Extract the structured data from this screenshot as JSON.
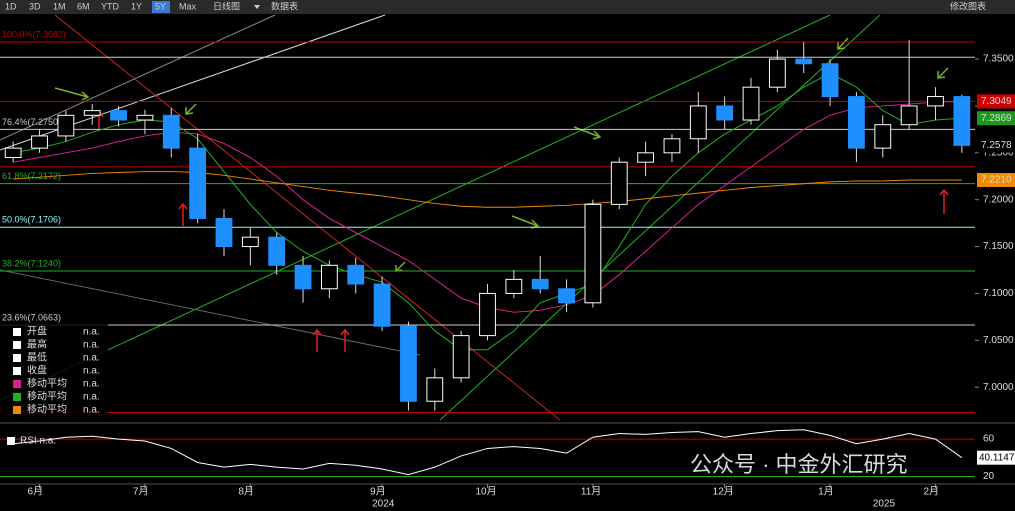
{
  "toolbar": {
    "ranges": [
      "1D",
      "3D",
      "1M",
      "6M",
      "YTD",
      "1Y",
      "5Y",
      "Max"
    ],
    "selected": "5Y",
    "chart_style": "日线图",
    "data_table": "数据表",
    "edit": "修改图表"
  },
  "chart_data": {
    "type": "candlestick",
    "categories": [
      null,
      "6月",
      null,
      null,
      null,
      "7月",
      null,
      null,
      null,
      "8月",
      null,
      null,
      null,
      null,
      "9月",
      null,
      null,
      null,
      "10月",
      null,
      null,
      null,
      "11月",
      null,
      null,
      null,
      null,
      "12月",
      null,
      null,
      null,
      "1月",
      null,
      null,
      null,
      "2月",
      null
    ],
    "years": [
      null,
      null,
      null,
      null,
      null,
      null,
      null,
      null,
      null,
      null,
      null,
      null,
      null,
      null,
      "2024",
      null,
      null,
      null,
      null,
      null,
      null,
      null,
      null,
      null,
      null,
      null,
      null,
      null,
      null,
      null,
      null,
      null,
      null,
      "2025",
      null,
      null,
      null
    ],
    "open": [
      7.245,
      7.255,
      7.268,
      7.29,
      7.295,
      7.285,
      7.29,
      7.255,
      7.18,
      7.15,
      7.16,
      7.13,
      7.105,
      7.13,
      7.11,
      7.065,
      6.985,
      7.01,
      7.055,
      7.1,
      7.115,
      7.105,
      7.09,
      7.195,
      7.24,
      7.25,
      7.265,
      7.3,
      7.285,
      7.32,
      7.35,
      7.345,
      7.31,
      7.255,
      7.28,
      7.3,
      7.31
    ],
    "high": [
      7.262,
      7.275,
      7.295,
      7.302,
      7.3,
      7.296,
      7.298,
      7.27,
      7.19,
      7.17,
      7.165,
      7.14,
      7.135,
      7.138,
      7.118,
      7.07,
      7.02,
      7.06,
      7.11,
      7.125,
      7.14,
      7.115,
      7.2,
      7.245,
      7.262,
      7.27,
      7.315,
      7.31,
      7.33,
      7.36,
      7.368,
      7.35,
      7.315,
      7.29,
      7.37,
      7.32,
      7.312
    ],
    "low": [
      7.24,
      7.25,
      7.262,
      7.28,
      7.278,
      7.27,
      7.245,
      7.175,
      7.14,
      7.13,
      7.12,
      7.09,
      7.095,
      7.1,
      7.06,
      6.975,
      6.975,
      7.005,
      7.05,
      7.095,
      7.1,
      7.08,
      7.085,
      7.19,
      7.225,
      7.24,
      7.25,
      7.275,
      7.28,
      7.315,
      7.335,
      7.3,
      7.24,
      7.245,
      7.275,
      7.285,
      7.25
    ],
    "close": [
      7.255,
      7.268,
      7.29,
      7.295,
      7.285,
      7.29,
      7.255,
      7.18,
      7.15,
      7.16,
      7.13,
      7.105,
      7.13,
      7.11,
      7.065,
      6.985,
      7.01,
      7.055,
      7.1,
      7.115,
      7.105,
      7.09,
      7.195,
      7.24,
      7.25,
      7.265,
      7.3,
      7.285,
      7.32,
      7.35,
      7.345,
      7.31,
      7.255,
      7.28,
      7.3,
      7.31,
      7.258
    ],
    "up_color": "#ffffff",
    "down_color": "#1e8fff",
    "series": [
      {
        "name": "移动平均",
        "color": "#e0208f",
        "legend_value": "n.a.",
        "values": [
          7.24,
          7.245,
          7.25,
          7.255,
          7.262,
          7.268,
          7.272,
          7.27,
          7.26,
          7.245,
          7.225,
          7.2,
          7.18,
          7.165,
          7.15,
          7.135,
          7.115,
          7.095,
          7.085,
          7.08,
          7.082,
          7.088,
          7.098,
          7.12,
          7.145,
          7.17,
          7.195,
          7.215,
          7.235,
          7.255,
          7.275,
          7.29,
          7.298,
          7.3,
          7.302,
          7.304,
          7.305
        ]
      },
      {
        "name": "移动平均",
        "color": "#22b022",
        "legend_value": "n.a.",
        "values": [
          7.25,
          7.255,
          7.262,
          7.272,
          7.28,
          7.285,
          7.283,
          7.265,
          7.23,
          7.195,
          7.165,
          7.145,
          7.13,
          7.12,
          7.112,
          7.09,
          7.06,
          7.04,
          7.04,
          7.06,
          7.09,
          7.1,
          7.11,
          7.15,
          7.195,
          7.225,
          7.25,
          7.27,
          7.285,
          7.3,
          7.32,
          7.335,
          7.32,
          7.295,
          7.28,
          7.285,
          7.287
        ]
      },
      {
        "name": "移动平均",
        "color": "#f08a00",
        "legend_value": "n.a.",
        "values": [
          7.222,
          7.224,
          7.226,
          7.228,
          7.229,
          7.23,
          7.23,
          7.229,
          7.226,
          7.222,
          7.218,
          7.214,
          7.21,
          7.207,
          7.204,
          7.2,
          7.196,
          7.193,
          7.192,
          7.192,
          7.193,
          7.194,
          7.196,
          7.198,
          7.201,
          7.204,
          7.207,
          7.21,
          7.213,
          7.215,
          7.217,
          7.219,
          7.22,
          7.22,
          7.221,
          7.221,
          7.221
        ]
      }
    ],
    "ohlc_legend": [
      {
        "label": "开盘",
        "value": "n.a."
      },
      {
        "label": "最高",
        "value": "n.a."
      },
      {
        "label": "最低",
        "value": "n.a."
      },
      {
        "label": "收盘",
        "value": "n.a."
      }
    ],
    "ylim": [
      6.965,
      7.397
    ],
    "yticks": [
      {
        "value": 7.35,
        "label": "7.3500"
      },
      {
        "value": 7.3,
        "label": "7.3000"
      },
      {
        "value": 7.25,
        "label": "7.2500"
      },
      {
        "value": 7.2,
        "label": "7.2000"
      },
      {
        "value": 7.15,
        "label": "7.1500"
      },
      {
        "value": 7.1,
        "label": "7.1000"
      },
      {
        "value": 7.05,
        "label": "7.0500"
      },
      {
        "value": 7.0,
        "label": "7.0000"
      }
    ],
    "fib_levels": [
      {
        "label": "100.0%(7.3682)",
        "value": 7.3682,
        "color": "#c00000"
      },
      {
        "label": "76.4%(7.2750)",
        "value": 7.275,
        "color": "#cccccc"
      },
      {
        "label": "61.8%(7.2172)",
        "value": 7.2172,
        "color": "#22b022"
      },
      {
        "label": "50.0%(7.1706)",
        "value": 7.1706,
        "color": "#7fffff"
      },
      {
        "label": "38.2%(7.1240)",
        "value": 7.124,
        "color": "#22b022"
      },
      {
        "label": "23.6%(7.0663)",
        "value": 7.0663,
        "color": "#cccccc"
      }
    ],
    "levels": [
      {
        "value": 7.352,
        "color": "#cccccc"
      },
      {
        "value": 7.3049,
        "color": "#c00000"
      },
      {
        "value": 7.235,
        "color": "#c00000"
      },
      {
        "value": 6.973,
        "color": "#c00000"
      }
    ],
    "price_labels": [
      {
        "value": 7.3049,
        "label": "7.3049",
        "color": "#d00000"
      },
      {
        "value": 7.2869,
        "label": "7.2869",
        "color": "#1c9a1c"
      },
      {
        "value": 7.2578,
        "label": "7.2578",
        "color": "#000000"
      },
      {
        "value": 7.221,
        "label": "7.2210",
        "color": "#f08a00"
      }
    ],
    "rsi": {
      "label": "RSI n.a.",
      "color": "#ffffff",
      "values": [
        55,
        58,
        62,
        63,
        60,
        58,
        50,
        35,
        30,
        33,
        30,
        28,
        34,
        32,
        28,
        22,
        30,
        42,
        50,
        52,
        50,
        45,
        62,
        66,
        65,
        67,
        68,
        62,
        66,
        69,
        70,
        64,
        55,
        60,
        66,
        60,
        40.1147
      ],
      "ylim": [
        12,
        74
      ],
      "yticks": [
        60,
        20
      ],
      "current": {
        "value": 40.1147,
        "label": "40.1147"
      }
    },
    "watermark": "公众号 · 中金外汇研究"
  }
}
